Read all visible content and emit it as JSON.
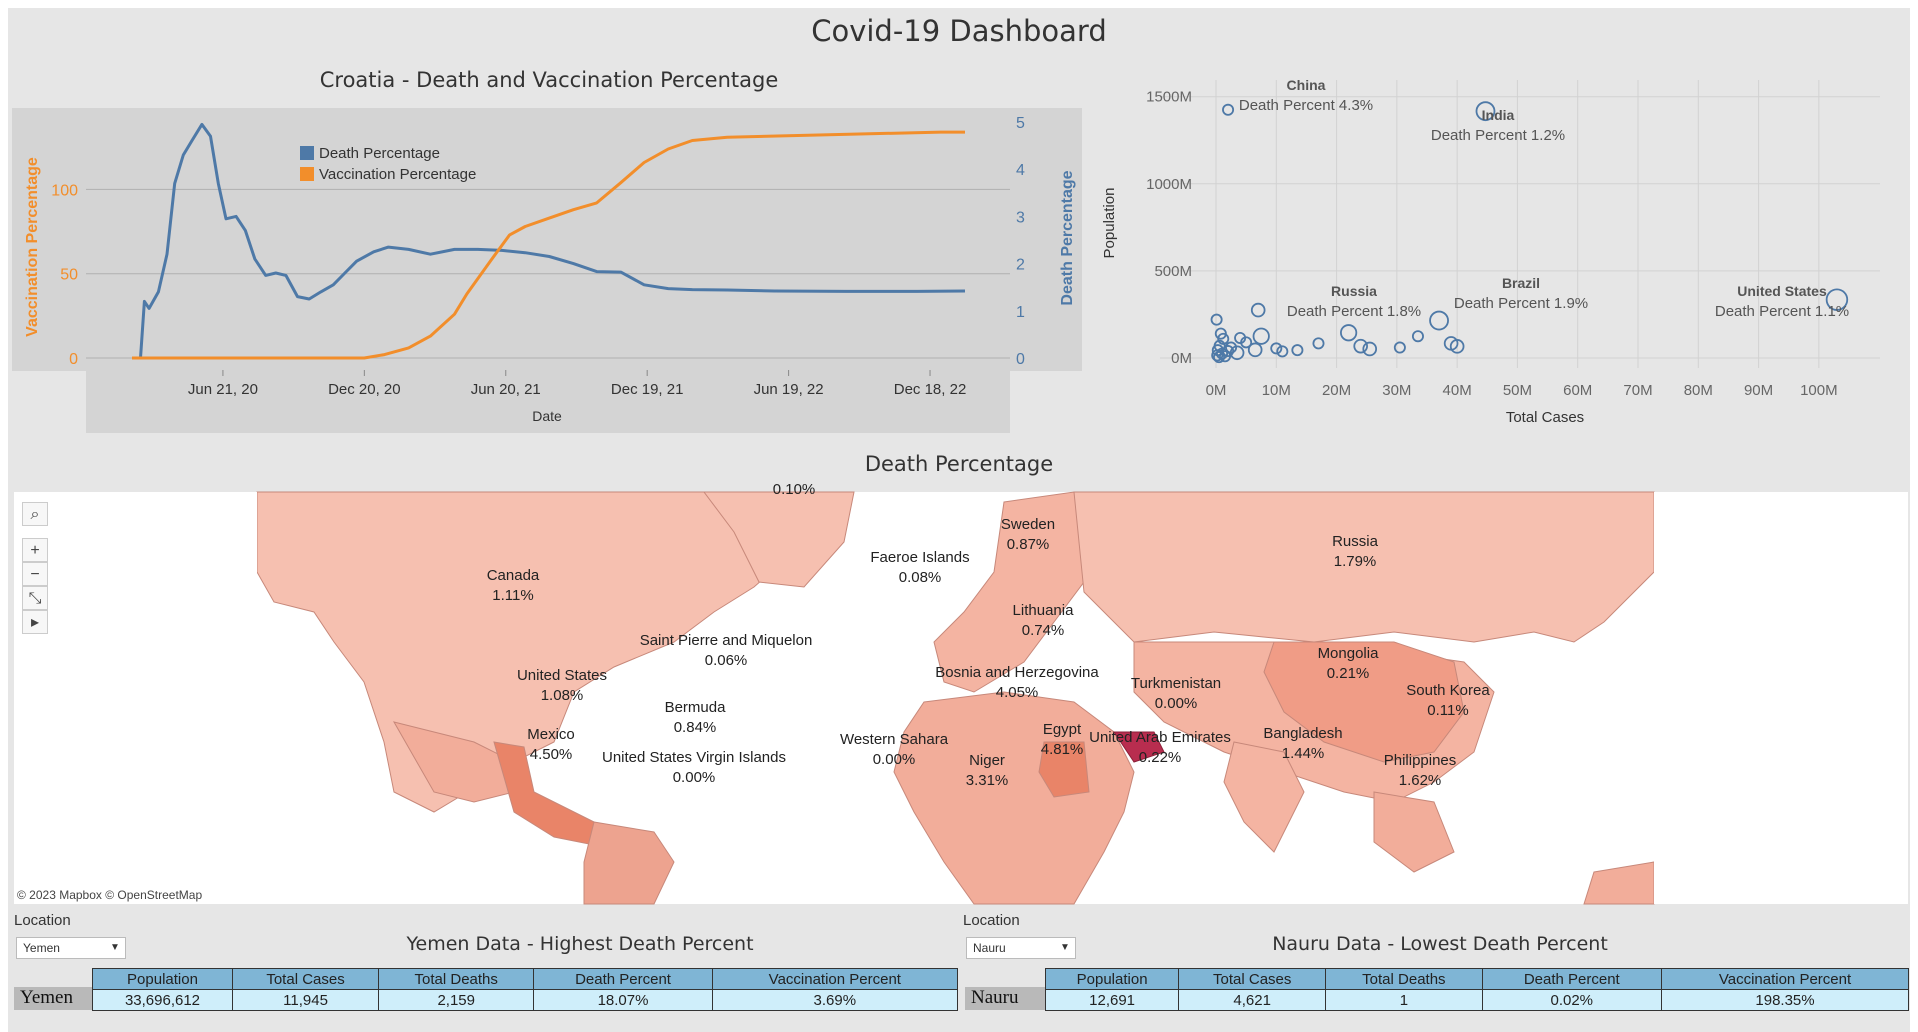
{
  "dashboard_title": "Covid-19 Dashboard",
  "line_chart": {
    "title": "Croatia - Death and Vaccination Percentage",
    "xlabel": "Date",
    "ylabel_left": "Vaccination Percentage",
    "ylabel_right": "Death Percentage",
    "legend": [
      "Death Percentage",
      "Vaccination Percentage"
    ],
    "colors": {
      "death": "#4e79a7",
      "vaccination": "#f28e2b"
    }
  },
  "scatter_chart": {
    "xlabel": "Total Cases",
    "ylabel": "Population",
    "annotations": [
      {
        "name": "China",
        "text": "Death Percent 4.3%"
      },
      {
        "name": "India",
        "text": "Death Percent 1.2%"
      },
      {
        "name": "Russia",
        "text": "Death Percent 1.8%"
      },
      {
        "name": "Brazil",
        "text": "Death Percent 1.9%"
      },
      {
        "name": "United States",
        "text": "Death Percent 1.1%"
      }
    ]
  },
  "chart_data": [
    {
      "type": "line",
      "title": "Croatia - Death and Vaccination Percentage",
      "xlabel": "Date",
      "ylabel": "Vaccination Percentage",
      "y2label": "Death Percentage",
      "x_ticks": [
        "Jun 21, 20",
        "Dec 20, 20",
        "Jun 20, 21",
        "Dec 19, 21",
        "Jun 19, 22",
        "Dec 18, 22"
      ],
      "ylim": [
        0,
        140
      ],
      "y_ticks": [
        0,
        50,
        100
      ],
      "y2lim": [
        0,
        5
      ],
      "y2_ticks": [
        0,
        1,
        2,
        3,
        4,
        5
      ],
      "legend_position": "top-left",
      "grid": true,
      "series": [
        {
          "name": "Death Percentage",
          "axis": "right",
          "color": "#4e79a7",
          "x": [
            "2020-02-25",
            "2020-03-07",
            "2020-03-12",
            "2020-03-18",
            "2020-03-30",
            "2020-04-10",
            "2020-04-20",
            "2020-05-01",
            "2020-05-12",
            "2020-05-25",
            "2020-06-05",
            "2020-06-15",
            "2020-06-25",
            "2020-07-08",
            "2020-07-20",
            "2020-08-01",
            "2020-08-15",
            "2020-08-28",
            "2020-09-10",
            "2020-09-25",
            "2020-10-10",
            "2020-10-25",
            "2020-11-10",
            "2020-11-25",
            "2020-12-10",
            "2021-01-01",
            "2021-01-20",
            "2021-02-15",
            "2021-03-15",
            "2021-04-15",
            "2021-05-15",
            "2021-06-15",
            "2021-07-15",
            "2021-08-15",
            "2021-09-15",
            "2021-10-15",
            "2021-11-15",
            "2021-12-15",
            "2022-01-15",
            "2022-02-15",
            "2022-04-01",
            "2022-06-01",
            "2022-09-01",
            "2022-12-01",
            "2023-02-01"
          ],
          "values": [
            0,
            0,
            1.2,
            1.05,
            1.4,
            2.2,
            3.7,
            4.3,
            4.6,
            4.95,
            4.7,
            3.7,
            2.95,
            3.0,
            2.7,
            2.1,
            1.75,
            1.8,
            1.75,
            1.3,
            1.25,
            1.4,
            1.55,
            1.8,
            2.05,
            2.25,
            2.35,
            2.3,
            2.2,
            2.3,
            2.3,
            2.28,
            2.23,
            2.15,
            2.0,
            1.83,
            1.82,
            1.55,
            1.47,
            1.45,
            1.44,
            1.42,
            1.41,
            1.41,
            1.42
          ]
        },
        {
          "name": "Vaccination Percentage",
          "axis": "left",
          "color": "#f28e2b",
          "x": [
            "2020-02-25",
            "2020-06-01",
            "2020-12-20",
            "2021-01-15",
            "2021-02-15",
            "2021-03-15",
            "2021-04-15",
            "2021-05-01",
            "2021-06-01",
            "2021-06-25",
            "2021-07-15",
            "2021-08-15",
            "2021-09-15",
            "2021-10-15",
            "2021-11-15",
            "2021-12-15",
            "2022-01-15",
            "2022-02-15",
            "2022-04-01",
            "2022-07-01",
            "2022-10-01",
            "2023-01-01",
            "2023-02-01"
          ],
          "values": [
            0,
            0,
            0,
            2,
            6,
            13,
            26,
            38,
            58,
            73,
            78,
            83,
            88,
            92,
            104,
            116,
            124,
            129,
            131,
            132,
            133,
            134,
            134
          ]
        }
      ]
    },
    {
      "type": "scatter",
      "xlabel": "Total Cases",
      "ylabel": "Population",
      "x_ticks": [
        "0M",
        "10M",
        "20M",
        "30M",
        "40M",
        "50M",
        "60M",
        "70M",
        "80M",
        "90M",
        "100M"
      ],
      "y_ticks": [
        "0M",
        "500M",
        "1000M",
        "1500M"
      ],
      "xlim": [
        0,
        105
      ],
      "ylim": [
        0,
        1550
      ],
      "x_units": "M",
      "y_units": "M",
      "grid": true,
      "points": [
        {
          "x": 103,
          "y": 335,
          "label": "United States",
          "size": 3
        },
        {
          "x": 44.7,
          "y": 1417,
          "label": "India",
          "size": 2.5
        },
        {
          "x": 37,
          "y": 215,
          "label": "Brazil",
          "size": 2.5
        },
        {
          "x": 22,
          "y": 145,
          "label": "Russia",
          "size": 2
        },
        {
          "x": 2,
          "y": 1425,
          "label": "China",
          "size": 1
        },
        {
          "x": 7.5,
          "y": 125,
          "size": 2
        },
        {
          "x": 24,
          "y": 68,
          "size": 1.5
        },
        {
          "x": 25.5,
          "y": 52,
          "size": 1.5
        },
        {
          "x": 39,
          "y": 84,
          "size": 1.5
        },
        {
          "x": 40,
          "y": 67,
          "size": 1.5
        },
        {
          "x": 33.5,
          "y": 125,
          "size": 1
        },
        {
          "x": 30.5,
          "y": 60,
          "size": 1
        },
        {
          "x": 17,
          "y": 84,
          "size": 1
        },
        {
          "x": 13.5,
          "y": 45,
          "size": 1
        },
        {
          "x": 11,
          "y": 38,
          "size": 1
        },
        {
          "x": 10,
          "y": 55,
          "size": 1
        },
        {
          "x": 6.5,
          "y": 47,
          "size": 1.5
        },
        {
          "x": 7,
          "y": 275,
          "size": 1.5
        },
        {
          "x": 5,
          "y": 90,
          "size": 1
        },
        {
          "x": 4,
          "y": 115,
          "size": 1
        },
        {
          "x": 3.5,
          "y": 30,
          "size": 1.5
        },
        {
          "x": 2.5,
          "y": 60,
          "size": 1
        },
        {
          "x": 2,
          "y": 40,
          "size": 1
        },
        {
          "x": 1.5,
          "y": 10,
          "size": 1
        },
        {
          "x": 1,
          "y": 25,
          "size": 1
        },
        {
          "x": 0.8,
          "y": 140,
          "size": 1
        },
        {
          "x": 0.5,
          "y": 5,
          "size": 1
        },
        {
          "x": 0.3,
          "y": 45,
          "size": 1
        },
        {
          "x": 0.2,
          "y": 15,
          "size": 1
        },
        {
          "x": 0.1,
          "y": 220,
          "size": 1
        },
        {
          "x": 0.6,
          "y": 70,
          "size": 1
        },
        {
          "x": 1.2,
          "y": 110,
          "size": 1
        }
      ]
    }
  ],
  "map": {
    "title": "Death Percentage",
    "attribution": "© 2023 Mapbox © OpenStreetMap",
    "colors": {
      "base": "#f6c0b0",
      "mid": "#eda38f",
      "high": "#e0705c",
      "max": "#b82d4f"
    },
    "tools": [
      "search-icon",
      "zoom-in-icon",
      "zoom-out-icon",
      "reset-icon",
      "play-icon"
    ],
    "tool_glyphs": {
      "search": "⌕",
      "zoom_in": "+",
      "zoom_out": "−",
      "reset": "⤡",
      "play": "▸"
    },
    "labels": [
      {
        "name": "Canada",
        "value": "1.11%"
      },
      {
        "name": "United States",
        "value": "1.08%"
      },
      {
        "name": "Mexico",
        "value": "4.50%"
      },
      {
        "name": "Saint Pierre and Miquelon",
        "value": "0.06%"
      },
      {
        "name": "Bermuda",
        "value": "0.84%"
      },
      {
        "name": "United States Virgin Islands",
        "value": "0.00%"
      },
      {
        "name": "Faeroe Islands",
        "value": "0.08%"
      },
      {
        "name": "Sweden",
        "value": "0.87%"
      },
      {
        "name": "Lithuania",
        "value": "0.74%"
      },
      {
        "name": "Bosnia and Herzegovina",
        "value": "4.05%"
      },
      {
        "name": "Western Sahara",
        "value": "0.00%"
      },
      {
        "name": "Egypt",
        "value": "4.81%"
      },
      {
        "name": "Niger",
        "value": "3.31%"
      },
      {
        "name": "United Arab Emirates",
        "value": "0.22%"
      },
      {
        "name": "Turkmenistan",
        "value": "0.00%"
      },
      {
        "name": "Russia",
        "value": "1.79%"
      },
      {
        "name": "Mongolia",
        "value": "0.21%"
      },
      {
        "name": "South Korea",
        "value": "0.11%"
      },
      {
        "name": "Bangladesh",
        "value": "1.44%"
      },
      {
        "name": "Philippines",
        "value": "1.62%"
      }
    ],
    "partial_label": "0.10%"
  },
  "highest": {
    "location_label": "Location",
    "selected": "Yemen",
    "title": "Yemen Data - Highest Death Percent",
    "row_label": "Yemen",
    "headers": [
      "Population",
      "Total Cases",
      "Total Deaths",
      "Death Percent",
      "Vaccination Percent"
    ],
    "values": [
      "33,696,612",
      "11,945",
      "2,159",
      "18.07%",
      "3.69%"
    ]
  },
  "lowest": {
    "location_label": "Location",
    "selected": "Nauru",
    "title": "Nauru Data - Lowest Death Percent",
    "row_label": "Nauru",
    "headers": [
      "Population",
      "Total Cases",
      "Total Deaths",
      "Death Percent",
      "Vaccination Percent"
    ],
    "values": [
      "12,691",
      "4,621",
      "1",
      "0.02%",
      "198.35%"
    ]
  }
}
